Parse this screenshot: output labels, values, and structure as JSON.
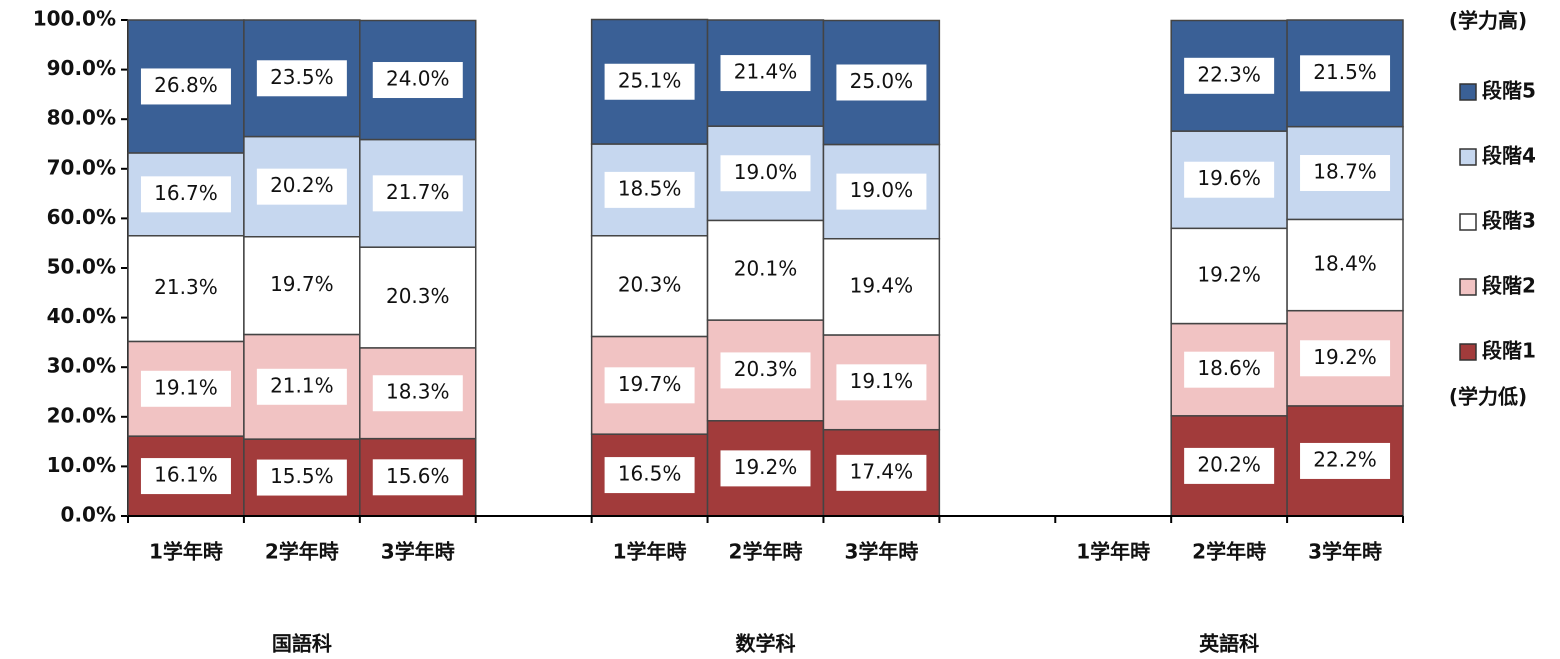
{
  "chart_data": {
    "type": "stacked_bar",
    "categories": [
      "1学年時",
      "2学年時",
      "3学年時",
      null,
      "1学年時",
      "2学年時",
      "3学年時",
      null,
      "1学年時",
      "2学年時",
      "3学年時"
    ],
    "group_labels": [
      "国語科",
      "数学科",
      "英語科"
    ],
    "series": [
      {
        "name": "段階1",
        "color": "#a23b3b",
        "values": [
          16.1,
          15.5,
          15.6,
          null,
          16.5,
          19.2,
          17.4,
          null,
          null,
          20.2,
          22.2
        ],
        "value_labels": [
          "16.1%",
          "15.5%",
          "15.6%",
          null,
          "16.5%",
          "19.2%",
          "17.4%",
          null,
          null,
          "20.2%",
          "22.2%"
        ]
      },
      {
        "name": "段階2",
        "color": "#f1c3c3",
        "values": [
          19.1,
          21.1,
          18.3,
          null,
          19.7,
          20.3,
          19.1,
          null,
          null,
          18.6,
          19.2
        ],
        "value_labels": [
          "19.1%",
          "21.1%",
          "18.3%",
          null,
          "19.7%",
          "20.3%",
          "19.1%",
          null,
          null,
          "18.6%",
          "19.2%"
        ]
      },
      {
        "name": "段階3",
        "color": "#ffffff",
        "values": [
          21.3,
          19.7,
          20.3,
          null,
          20.3,
          20.1,
          19.4,
          null,
          null,
          19.2,
          18.4
        ],
        "value_labels": [
          "21.3%",
          "19.7%",
          "20.3%",
          null,
          "20.3%",
          "20.1%",
          "19.4%",
          null,
          null,
          "19.2%",
          "18.4%"
        ]
      },
      {
        "name": "段階4",
        "color": "#c6d7ef",
        "values": [
          16.7,
          20.2,
          21.7,
          null,
          18.5,
          19.0,
          19.0,
          null,
          null,
          19.6,
          18.7
        ],
        "value_labels": [
          "16.7%",
          "20.2%",
          "21.7%",
          null,
          "18.5%",
          "19.0%",
          "19.0%",
          null,
          null,
          "19.6%",
          "18.7%"
        ]
      },
      {
        "name": "段階5",
        "color": "#3a6096",
        "values": [
          26.8,
          23.5,
          24.0,
          null,
          25.1,
          21.4,
          25.0,
          null,
          null,
          22.3,
          21.5
        ],
        "value_labels": [
          "26.8%",
          "23.5%",
          "24.0%",
          null,
          "25.1%",
          "21.4%",
          "25.0%",
          null,
          null,
          "22.3%",
          "21.5%"
        ]
      }
    ],
    "legend_top_note": "(学力高)",
    "legend_bottom_note": "(学力低)",
    "ylim": [
      0,
      100
    ],
    "yticks": [
      {
        "value": 0,
        "label": "0.0%"
      },
      {
        "value": 10,
        "label": "10.0%"
      },
      {
        "value": 20,
        "label": "20.0%"
      },
      {
        "value": 30,
        "label": "30.0%"
      },
      {
        "value": 40,
        "label": "40.0%"
      },
      {
        "value": 50,
        "label": "50.0%"
      },
      {
        "value": 60,
        "label": "60.0%"
      },
      {
        "value": 70,
        "label": "70.0%"
      },
      {
        "value": 80,
        "label": "80.0%"
      },
      {
        "value": 90,
        "label": "90.0%"
      },
      {
        "value": 100,
        "label": "100.0%"
      }
    ],
    "legend_position": "right"
  }
}
